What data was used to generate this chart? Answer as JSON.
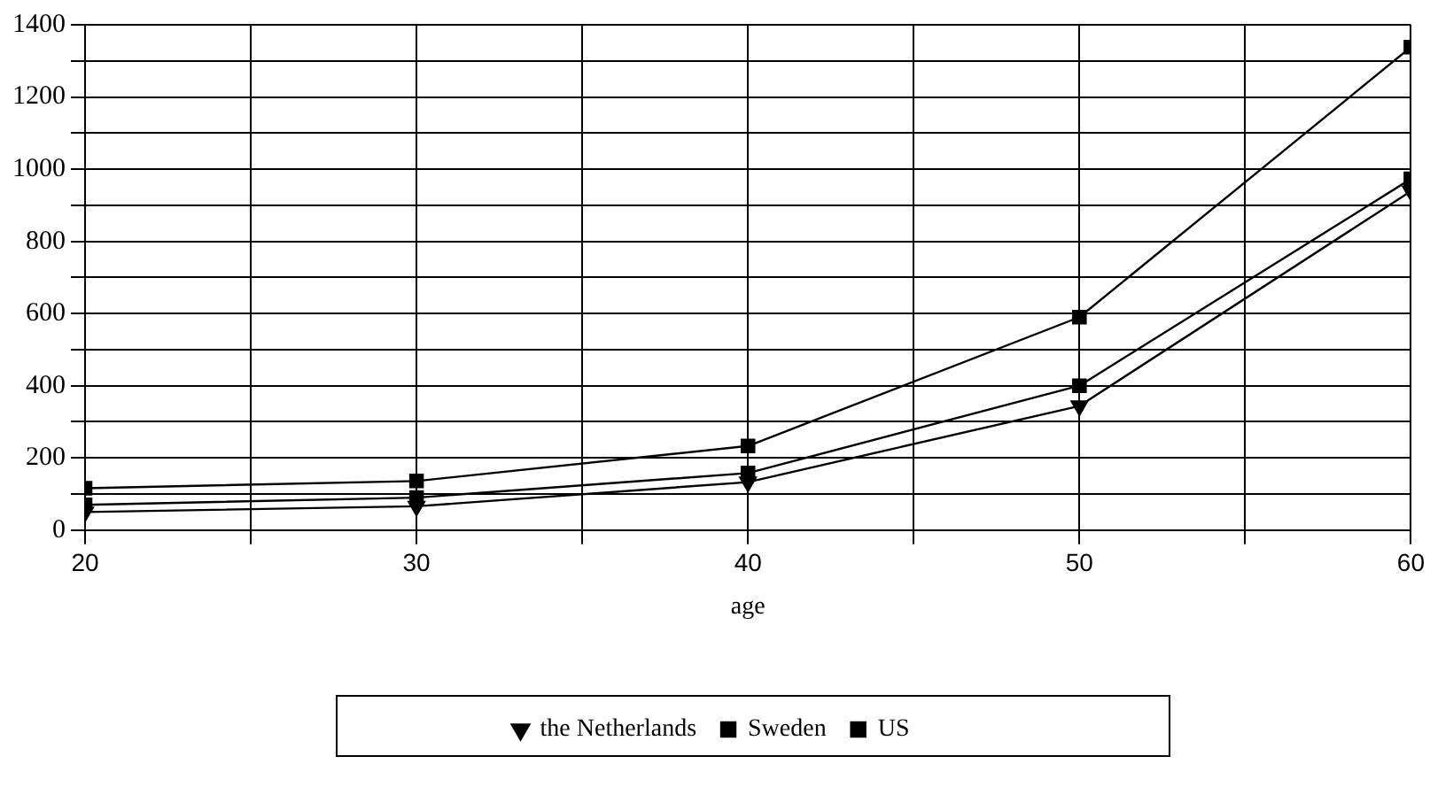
{
  "chart_data": {
    "type": "line",
    "xlabel": "age",
    "x": [
      20,
      30,
      40,
      50,
      60
    ],
    "series": [
      {
        "name": "the Netherlands",
        "color": "#000000",
        "marker": "triangle",
        "values": [
          50,
          66,
          133,
          344,
          939
        ]
      },
      {
        "name": "Sweden",
        "color": "#000000",
        "marker": "square",
        "values": [
          70,
          90,
          158,
          400,
          973
        ]
      },
      {
        "name": "US",
        "color": "#000000",
        "marker": "square",
        "values": [
          116,
          136,
          233,
          590,
          1338
        ]
      }
    ],
    "xlim": [
      20,
      60
    ],
    "xticks": [
      20,
      {
        "value": 25,
        "label": null
      },
      30,
      {
        "value": 35,
        "label": null
      },
      40,
      {
        "value": 45,
        "label": null
      },
      50,
      {
        "value": 55,
        "label": null
      },
      60
    ],
    "ylim": [
      0,
      1400
    ],
    "yticks": [
      0,
      {
        "value": 100,
        "label": null
      },
      200,
      {
        "value": 300,
        "label": null
      },
      400,
      {
        "value": 500,
        "label": null
      },
      600,
      {
        "value": 700,
        "label": null
      },
      800,
      {
        "value": 900,
        "label": null
      },
      1000,
      {
        "value": 1100,
        "label": null
      },
      1200,
      {
        "value": 1300,
        "label": null
      },
      1400
    ],
    "grid": true,
    "legend": "bottom",
    "line_style": "solid"
  }
}
